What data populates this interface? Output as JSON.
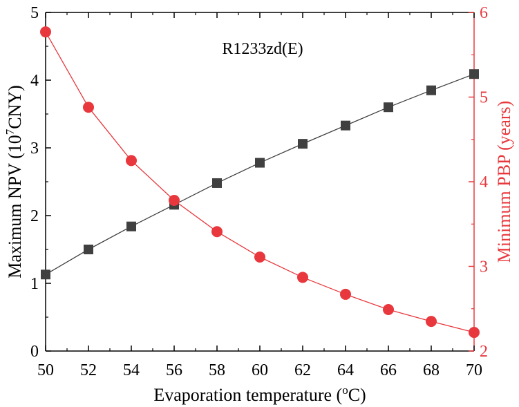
{
  "colors": {
    "npv": "#404040",
    "pbp": "#e8383d",
    "axis": "#000000"
  },
  "chart_data": {
    "type": "line",
    "annotation": "R1233zd(E)",
    "x": [
      50,
      52,
      54,
      56,
      58,
      60,
      62,
      64,
      66,
      68,
      70
    ],
    "xlabel": {
      "main": "Evaporation temperature (",
      "sup": "o",
      "tail": "C)"
    },
    "xlim": [
      50,
      70
    ],
    "xticks": [
      "50",
      "52",
      "54",
      "56",
      "58",
      "60",
      "62",
      "64",
      "66",
      "68",
      "70"
    ],
    "ylabel_left": {
      "main": "Maximum NPV (10",
      "sup": "7",
      "tail": "CNY)"
    },
    "ylim_left": [
      0,
      5
    ],
    "yticks_left": [
      "0",
      "1",
      "2",
      "3",
      "4",
      "5"
    ],
    "ylabel_right": "Minimum PBP (years)",
    "ylim_right": [
      2,
      6
    ],
    "yticks_right": [
      "2",
      "3",
      "4",
      "5",
      "6"
    ],
    "series": [
      {
        "name": "Maximum NPV",
        "axis": "left",
        "marker": "square",
        "values": [
          1.13,
          1.5,
          1.84,
          2.16,
          2.48,
          2.78,
          3.06,
          3.33,
          3.6,
          3.85,
          4.09
        ]
      },
      {
        "name": "Minimum PBP",
        "axis": "right",
        "marker": "circle",
        "values": [
          5.77,
          4.88,
          4.25,
          3.78,
          3.41,
          3.11,
          2.87,
          2.67,
          2.49,
          2.35,
          2.22
        ]
      }
    ]
  }
}
